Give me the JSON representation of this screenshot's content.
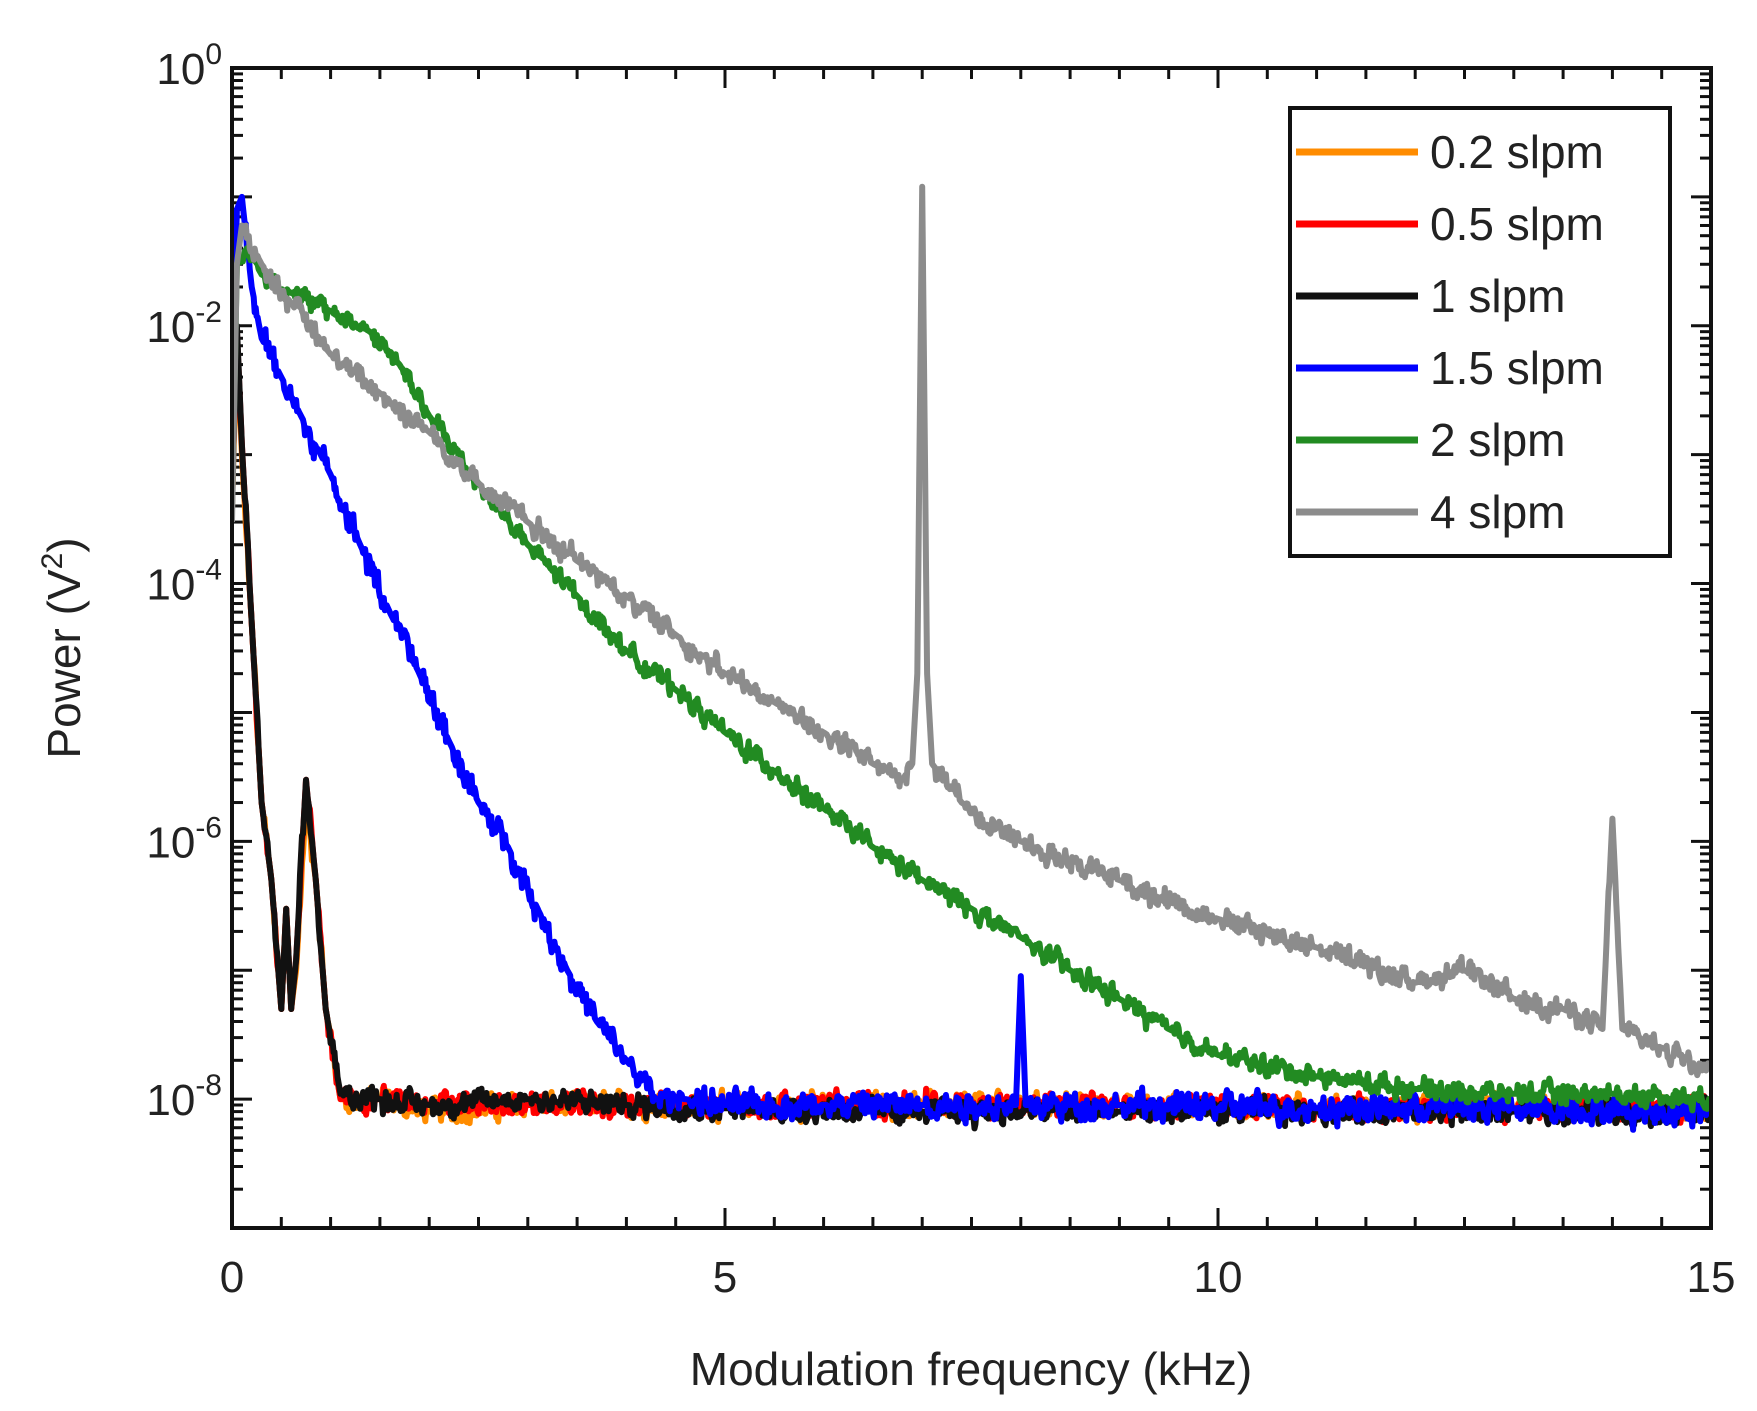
{
  "chart_data": {
    "type": "line",
    "title": "",
    "xlabel": "Modulation frequency (kHz)",
    "ylabel_main": "Power (V",
    "ylabel_sup": "2",
    "ylabel_close": ")",
    "xlim": [
      0,
      15
    ],
    "ylim": [
      1e-09,
      1
    ],
    "yscale": "log",
    "x_ticks": [
      {
        "value": 0,
        "label": "0"
      },
      {
        "value": 5,
        "label": "5"
      },
      {
        "value": 10,
        "label": "10"
      },
      {
        "value": 15,
        "label": "15"
      }
    ],
    "y_ticks": [
      {
        "value": 1e-08,
        "base": "10",
        "exp": "-8"
      },
      {
        "value": 1e-06,
        "base": "10",
        "exp": "-6"
      },
      {
        "value": 0.0001,
        "base": "10",
        "exp": "-4"
      },
      {
        "value": 0.01,
        "base": "10",
        "exp": "-2"
      },
      {
        "value": 1,
        "base": "10",
        "exp": "0"
      }
    ],
    "legend_position": "top-right",
    "series": [
      {
        "name": "0.2 slpm",
        "color": "#ff8c00",
        "points": [
          [
            0,
            0.0004
          ],
          [
            0.05,
            0.008
          ],
          [
            0.1,
            0.001
          ],
          [
            0.2,
            5e-05
          ],
          [
            0.3,
            2e-06
          ],
          [
            0.4,
            5e-07
          ],
          [
            0.5,
            5e-08
          ],
          [
            0.55,
            3e-07
          ],
          [
            0.6,
            5e-08
          ],
          [
            0.65,
            1e-07
          ],
          [
            0.75,
            2e-06
          ],
          [
            0.85,
            5e-07
          ],
          [
            0.95,
            5e-08
          ],
          [
            1.1,
            1e-08
          ],
          [
            1.5,
            1e-08
          ],
          [
            2,
            8e-09
          ],
          [
            3,
            9e-09
          ],
          [
            5,
            9e-09
          ],
          [
            7,
            9e-09
          ],
          [
            9,
            9e-09
          ],
          [
            11,
            8.5e-09
          ],
          [
            13,
            8.5e-09
          ],
          [
            15,
            8.5e-09
          ]
        ],
        "noise": 0.13
      },
      {
        "name": "0.5 slpm",
        "color": "#ff0000",
        "points": [
          [
            0,
            0.0005
          ],
          [
            0.05,
            0.009
          ],
          [
            0.1,
            0.0012
          ],
          [
            0.2,
            5e-05
          ],
          [
            0.3,
            2e-06
          ],
          [
            0.4,
            5e-07
          ],
          [
            0.5,
            5e-08
          ],
          [
            0.55,
            3e-07
          ],
          [
            0.6,
            5e-08
          ],
          [
            0.65,
            1.2e-07
          ],
          [
            0.75,
            3e-06
          ],
          [
            0.85,
            5e-07
          ],
          [
            0.95,
            5e-08
          ],
          [
            1.1,
            1e-08
          ],
          [
            1.5,
            1e-08
          ],
          [
            2,
            9e-09
          ],
          [
            3,
            9e-09
          ],
          [
            5,
            9e-09
          ],
          [
            7,
            9e-09
          ],
          [
            9,
            9e-09
          ],
          [
            11,
            8.5e-09
          ],
          [
            13,
            8.5e-09
          ],
          [
            15,
            8.5e-09
          ]
        ],
        "noise": 0.13
      },
      {
        "name": "1 slpm",
        "color": "#111111",
        "points": [
          [
            0,
            0.0005
          ],
          [
            0.05,
            0.01
          ],
          [
            0.1,
            0.0012
          ],
          [
            0.2,
            5e-05
          ],
          [
            0.3,
            2e-06
          ],
          [
            0.4,
            5e-07
          ],
          [
            0.5,
            5e-08
          ],
          [
            0.55,
            3e-07
          ],
          [
            0.6,
            5e-08
          ],
          [
            0.65,
            1.2e-07
          ],
          [
            0.75,
            3e-06
          ],
          [
            0.85,
            5e-07
          ],
          [
            0.95,
            5e-08
          ],
          [
            1.1,
            1.1e-08
          ],
          [
            1.5,
            1e-08
          ],
          [
            2,
            9e-09
          ],
          [
            3,
            1e-08
          ],
          [
            4,
            9e-09
          ],
          [
            5,
            8.5e-09
          ],
          [
            7,
            8e-09
          ],
          [
            9,
            8e-09
          ],
          [
            11,
            8e-09
          ],
          [
            13,
            8e-09
          ],
          [
            15,
            8e-09
          ]
        ],
        "noise": 0.13
      },
      {
        "name": "1.5 slpm",
        "color": "#0000ff",
        "points": [
          [
            0,
            0.003
          ],
          [
            0.05,
            0.08
          ],
          [
            0.1,
            0.1
          ],
          [
            0.2,
            0.02
          ],
          [
            0.3,
            0.008
          ],
          [
            0.5,
            0.004
          ],
          [
            0.7,
            0.002
          ],
          [
            0.9,
            0.001
          ],
          [
            1.0,
            0.0007
          ],
          [
            1.3,
            0.0002
          ],
          [
            1.6,
            6e-05
          ],
          [
            1.9,
            2e-05
          ],
          [
            2.2,
            6e-06
          ],
          [
            2.5,
            2e-06
          ],
          [
            2.8,
            9e-07
          ],
          [
            3.1,
            3e-07
          ],
          [
            3.4,
            1e-07
          ],
          [
            3.7,
            4e-08
          ],
          [
            4,
            2e-08
          ],
          [
            4.3,
            1e-08
          ],
          [
            4.6,
            1e-08
          ],
          [
            5,
            9e-09
          ],
          [
            6,
            9e-09
          ],
          [
            7,
            9e-09
          ],
          [
            7.8,
            9e-09
          ],
          [
            7.95,
            9e-09
          ],
          [
            8.0,
            9e-08
          ],
          [
            8.05,
            9e-09
          ],
          [
            9,
            9e-09
          ],
          [
            11,
            8.5e-09
          ],
          [
            13,
            8.5e-09
          ],
          [
            15,
            8e-09
          ]
        ],
        "noise": 0.15
      },
      {
        "name": "2 slpm",
        "color": "#228b22",
        "points": [
          [
            0,
            0.0004
          ],
          [
            0.05,
            0.03
          ],
          [
            0.15,
            0.04
          ],
          [
            0.3,
            0.025
          ],
          [
            0.6,
            0.018
          ],
          [
            1.0,
            0.013
          ],
          [
            1.4,
            0.009
          ],
          [
            1.7,
            0.005
          ],
          [
            2,
            0.002
          ],
          [
            2.5,
            0.0006
          ],
          [
            3,
            0.0002
          ],
          [
            3.5,
            8e-05
          ],
          [
            4,
            3e-05
          ],
          [
            4.5,
            1.5e-05
          ],
          [
            5,
            7e-06
          ],
          [
            5.5,
            3.5e-06
          ],
          [
            6,
            1.8e-06
          ],
          [
            6.5,
            9e-07
          ],
          [
            7,
            5e-07
          ],
          [
            7.5,
            3e-07
          ],
          [
            8,
            1.8e-07
          ],
          [
            8.5,
            1e-07
          ],
          [
            9,
            6e-08
          ],
          [
            9.5,
            3.5e-08
          ],
          [
            10,
            2.2e-08
          ],
          [
            11,
            1.5e-08
          ],
          [
            12,
            1.2e-08
          ],
          [
            13,
            1.1e-08
          ],
          [
            14,
            1.1e-08
          ],
          [
            15,
            1e-08
          ]
        ],
        "noise": 0.11
      },
      {
        "name": "4 slpm",
        "color": "#8c8c8c",
        "points": [
          [
            0,
            0.0003
          ],
          [
            0.05,
            0.03
          ],
          [
            0.1,
            0.06
          ],
          [
            0.3,
            0.03
          ],
          [
            0.6,
            0.015
          ],
          [
            1,
            0.006
          ],
          [
            1.5,
            0.003
          ],
          [
            2,
            0.0015
          ],
          [
            2.5,
            0.0006
          ],
          [
            3,
            0.0003
          ],
          [
            3.5,
            0.00015
          ],
          [
            4,
            8e-05
          ],
          [
            4.5,
            4e-05
          ],
          [
            5,
            2e-05
          ],
          [
            5.5,
            1.2e-05
          ],
          [
            6,
            7e-06
          ],
          [
            6.5,
            4e-06
          ],
          [
            6.8,
            3e-06
          ],
          [
            6.9,
            4e-06
          ],
          [
            6.95,
            2e-05
          ],
          [
            7.0,
            0.12
          ],
          [
            7.05,
            2e-05
          ],
          [
            7.1,
            4e-06
          ],
          [
            7.4,
            2e-06
          ],
          [
            8,
            1e-06
          ],
          [
            9,
            5e-07
          ],
          [
            10,
            2.5e-07
          ],
          [
            11,
            1.5e-07
          ],
          [
            12,
            8e-08
          ],
          [
            12.5,
            1e-07
          ],
          [
            13,
            6e-08
          ],
          [
            13.5,
            5e-08
          ],
          [
            13.9,
            3.5e-08
          ],
          [
            14.0,
            1.5e-06
          ],
          [
            14.1,
            3.5e-08
          ],
          [
            14.5,
            2.5e-08
          ],
          [
            15,
            1.8e-08
          ]
        ],
        "noise": 0.12
      }
    ]
  }
}
